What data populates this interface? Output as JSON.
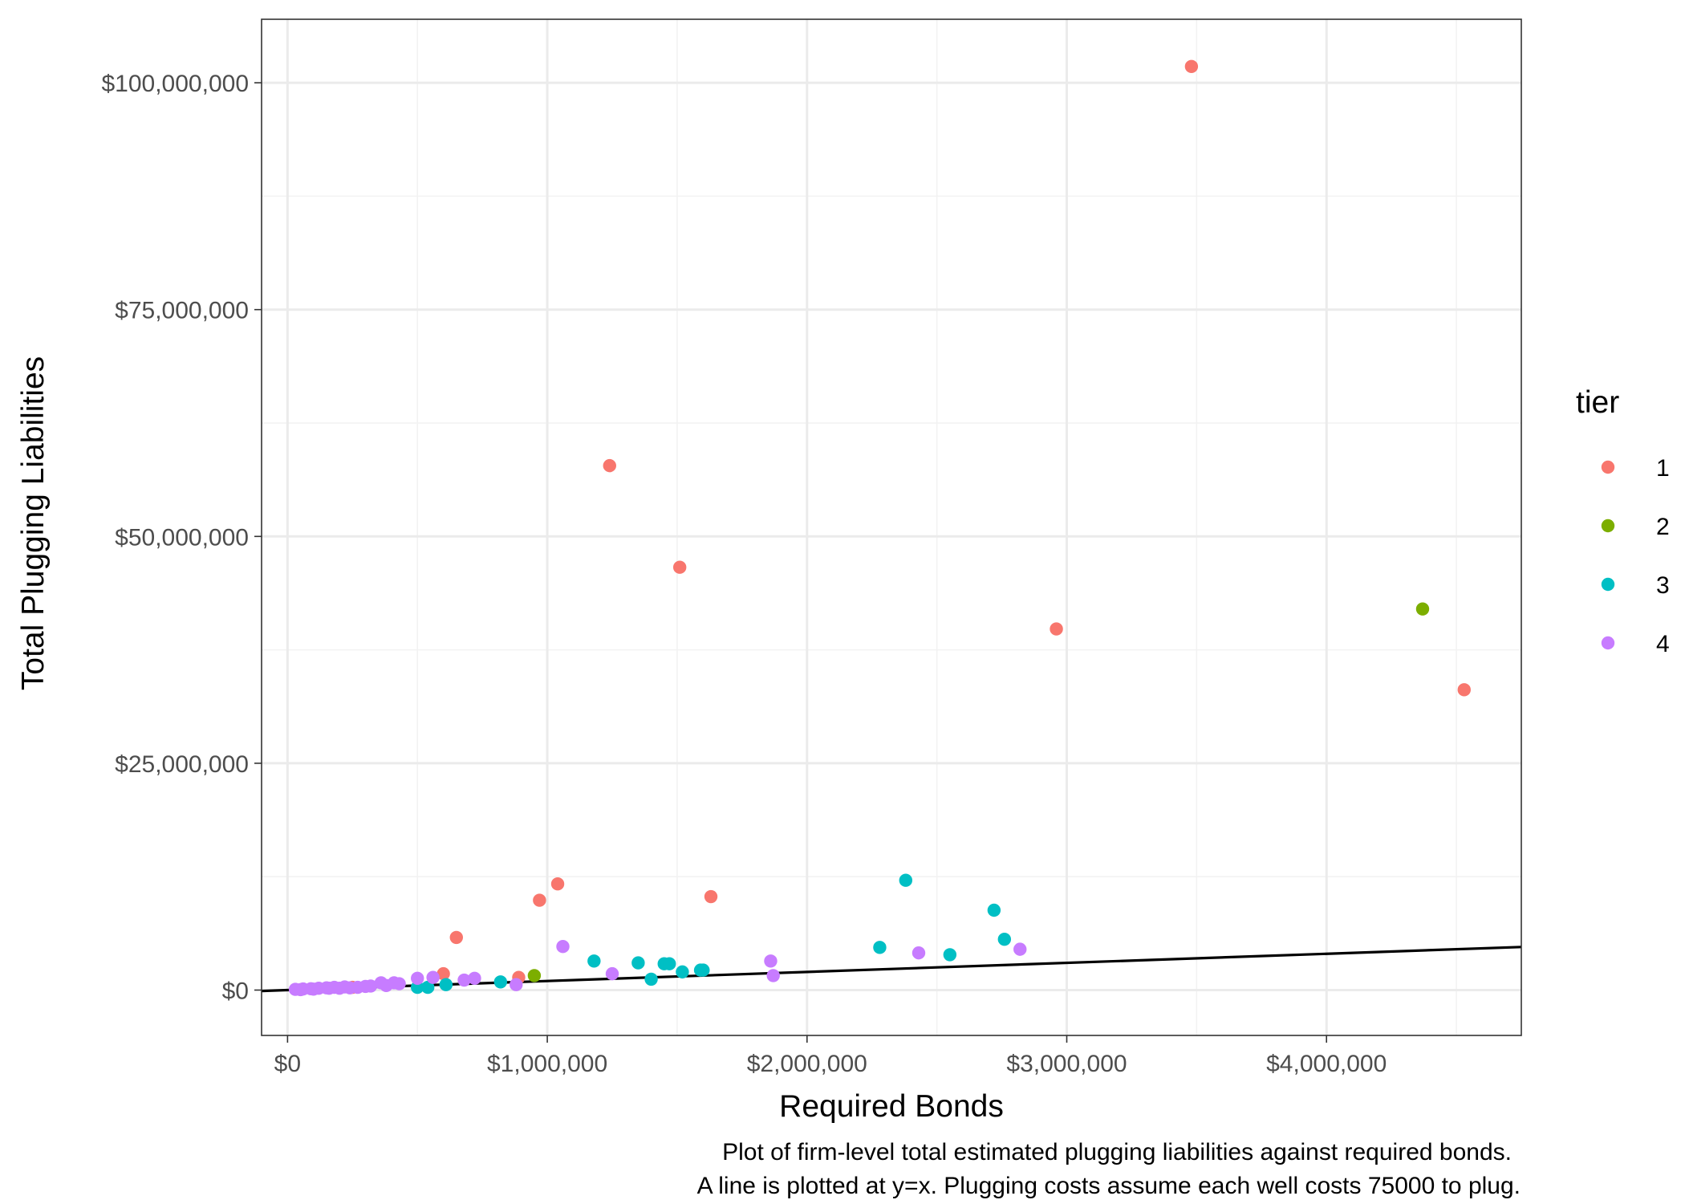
{
  "chart_data": {
    "type": "scatter",
    "xlabel": "Required Bonds",
    "ylabel": "Total Plugging Liabilities",
    "legend_title": "tier",
    "legend_position": "right",
    "grid": true,
    "xlim": [
      -100000,
      4750000
    ],
    "ylim": [
      -5000000,
      107000000
    ],
    "x_ticks": [
      0,
      1000000,
      2000000,
      3000000,
      4000000
    ],
    "x_tick_labels": [
      "$0",
      "$1,000,000",
      "$2,000,000",
      "$3,000,000",
      "$4,000,000"
    ],
    "y_ticks": [
      0,
      25000000,
      50000000,
      75000000,
      100000000
    ],
    "y_tick_labels": [
      "$0",
      "$25,000,000",
      "$50,000,000",
      "$75,000,000",
      "$100,000,000"
    ],
    "reference_line": {
      "slope": 1,
      "intercept": 0,
      "color": "#000000"
    },
    "caption": [
      "Plot of firm-level total estimated plugging liabilities against required bonds.",
      "A line is plotted at y=x. Plugging costs assume each well costs 75000 to plug."
    ],
    "series": [
      {
        "name": "1",
        "color": "#F8766D",
        "points": [
          [
            3480000,
            101800000
          ],
          [
            1240000,
            57800000
          ],
          [
            1510000,
            46600000
          ],
          [
            2960000,
            39800000
          ],
          [
            4530000,
            33100000
          ],
          [
            1040000,
            11700000
          ],
          [
            970000,
            9900000
          ],
          [
            1630000,
            10300000
          ],
          [
            650000,
            5800000
          ],
          [
            600000,
            1800000
          ],
          [
            890000,
            1400000
          ],
          [
            250000,
            300000
          ]
        ]
      },
      {
        "name": "2",
        "color": "#7CAE00",
        "points": [
          [
            4370000,
            42000000
          ],
          [
            950000,
            1600000
          ]
        ]
      },
      {
        "name": "3",
        "color": "#00BFC4",
        "points": [
          [
            2380000,
            12100000
          ],
          [
            2720000,
            8800000
          ],
          [
            2760000,
            5600000
          ],
          [
            2280000,
            4700000
          ],
          [
            2550000,
            3900000
          ],
          [
            1180000,
            3200000
          ],
          [
            1350000,
            3000000
          ],
          [
            1450000,
            2900000
          ],
          [
            1470000,
            2900000
          ],
          [
            1590000,
            2200000
          ],
          [
            1600000,
            2200000
          ],
          [
            1520000,
            2000000
          ],
          [
            1400000,
            1200000
          ],
          [
            820000,
            900000
          ],
          [
            610000,
            600000
          ],
          [
            500000,
            300000
          ],
          [
            540000,
            300000
          ]
        ]
      },
      {
        "name": "4",
        "color": "#C77CFF",
        "points": [
          [
            1060000,
            4800000
          ],
          [
            1860000,
            3200000
          ],
          [
            2820000,
            4500000
          ],
          [
            2430000,
            4100000
          ],
          [
            1250000,
            1800000
          ],
          [
            1870000,
            1600000
          ],
          [
            500000,
            1300000
          ],
          [
            560000,
            1400000
          ],
          [
            720000,
            1300000
          ],
          [
            680000,
            1100000
          ],
          [
            360000,
            800000
          ],
          [
            410000,
            800000
          ],
          [
            430000,
            700000
          ],
          [
            880000,
            600000
          ],
          [
            380000,
            500000
          ],
          [
            300000,
            400000
          ],
          [
            270000,
            300000
          ],
          [
            220000,
            350000
          ],
          [
            180000,
            300000
          ],
          [
            150000,
            250000
          ],
          [
            120000,
            200000
          ],
          [
            90000,
            150000
          ],
          [
            60000,
            120000
          ],
          [
            30000,
            80000
          ],
          [
            200000,
            200000
          ],
          [
            100000,
            100000
          ],
          [
            50000,
            50000
          ],
          [
            320000,
            450000
          ],
          [
            240000,
            250000
          ],
          [
            160000,
            200000
          ]
        ]
      }
    ]
  }
}
